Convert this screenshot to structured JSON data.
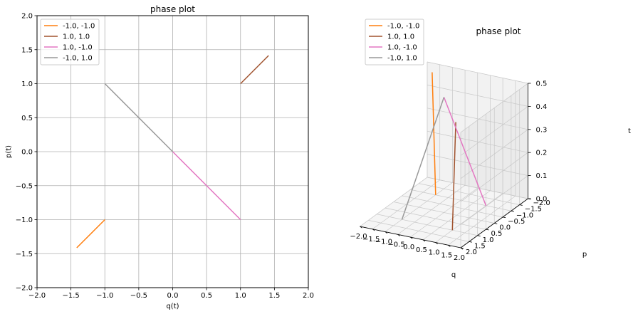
{
  "chart_data": [
    {
      "type": "line",
      "title": "phase plot",
      "xlabel": "q(t)",
      "ylabel": "p(t)",
      "xlim": [
        -2,
        2
      ],
      "ylim": [
        -2,
        2
      ],
      "xticks": [
        -2.0,
        -1.5,
        -1.0,
        -0.5,
        0.0,
        0.5,
        1.0,
        1.5,
        2.0
      ],
      "yticks": [
        -2.0,
        -1.5,
        -1.0,
        -0.5,
        0.0,
        0.5,
        1.0,
        1.5,
        2.0
      ],
      "grid": true,
      "legend_position": "top-left",
      "series": [
        {
          "name": "-1.0, -1.0",
          "color": "#ff7f0e",
          "x": [
            -1.0,
            -1.414
          ],
          "y": [
            -1.0,
            -1.414
          ]
        },
        {
          "name": "1.0, 1.0",
          "color": "#a0522d",
          "x": [
            1.0,
            1.414
          ],
          "y": [
            1.0,
            1.414
          ]
        },
        {
          "name": "1.0, -1.0",
          "color": "#e377c2",
          "x": [
            1.0,
            0.0
          ],
          "y": [
            -1.0,
            0.0
          ]
        },
        {
          "name": "-1.0, 1.0",
          "color": "#999999",
          "x": [
            -1.0,
            0.0
          ],
          "y": [
            1.0,
            0.0
          ]
        }
      ]
    },
    {
      "type": "line",
      "title": "phase plot",
      "xlabel": "q",
      "ylabel": "p",
      "zlabel": "t",
      "xlim": [
        -2,
        2
      ],
      "ylim": [
        -2,
        2
      ],
      "zlim": [
        0,
        0.5
      ],
      "xticks": [
        -2.0,
        -1.5,
        -1.0,
        -0.5,
        0.0,
        0.5,
        1.0,
        1.5,
        2.0
      ],
      "yticks": [
        -2.0,
        -1.5,
        -1.0,
        -0.5,
        0.0,
        0.5,
        1.0,
        1.5,
        2.0
      ],
      "zticks": [
        0.0,
        0.1,
        0.2,
        0.3,
        0.4,
        0.5
      ],
      "grid": true,
      "legend_position": "top-left",
      "series": [
        {
          "name": "-1.0, -1.0",
          "color": "#ff7f0e",
          "q": [
            -1.0,
            -1.414
          ],
          "p": [
            -1.0,
            -1.414
          ],
          "t": [
            0.0,
            0.5
          ]
        },
        {
          "name": "1.0, 1.0",
          "color": "#a0522d",
          "q": [
            1.0,
            1.414
          ],
          "p": [
            1.0,
            1.414
          ],
          "t": [
            0.0,
            0.5
          ]
        },
        {
          "name": "1.0, -1.0",
          "color": "#e377c2",
          "q": [
            1.0,
            0.0
          ],
          "p": [
            -1.0,
            0.0
          ],
          "t": [
            0.0,
            0.5
          ]
        },
        {
          "name": "-1.0, 1.0",
          "color": "#999999",
          "q": [
            -1.0,
            0.0
          ],
          "p": [
            1.0,
            0.0
          ],
          "t": [
            0.0,
            0.5
          ]
        }
      ]
    }
  ]
}
